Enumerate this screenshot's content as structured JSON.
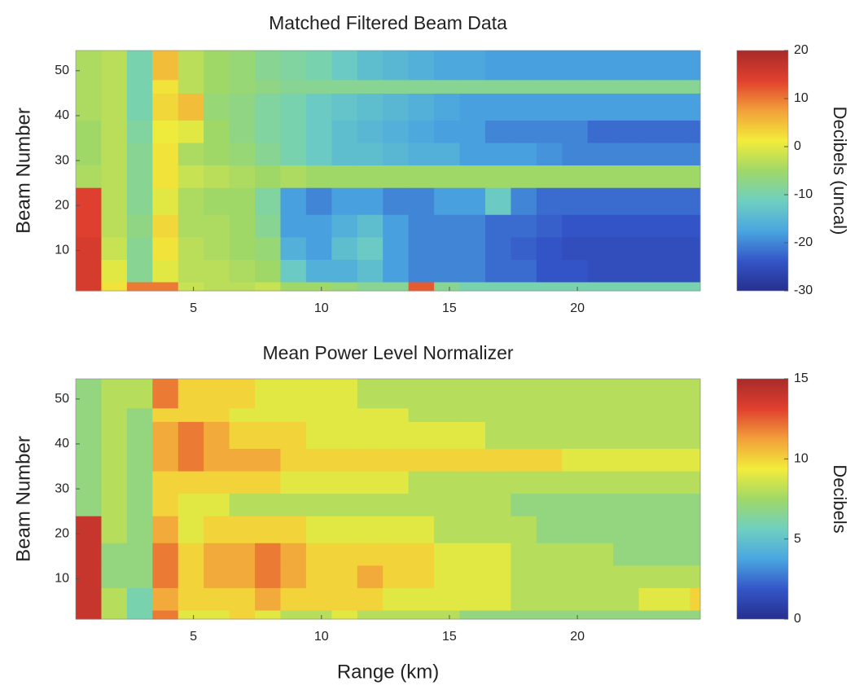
{
  "chart_data": [
    {
      "type": "heatmap",
      "title": "Matched Filtered Beam Data",
      "ylabel": "Beam Number",
      "colorbar_label": "Decibels (uncal)",
      "x_edges": [
        0.4,
        1.4,
        2.4,
        3.4,
        4.4,
        5.4,
        6.4,
        7.4,
        8.4,
        9.4,
        10.4,
        11.4,
        12.4,
        13.4,
        14.4,
        15.4,
        16.4,
        17.4,
        18.4,
        19.4,
        20.4,
        21.4,
        22.4,
        23.4,
        24.4,
        24.8
      ],
      "y_edges": [
        1,
        3,
        8,
        13,
        18,
        24,
        29,
        34,
        39,
        45,
        48,
        54.5
      ],
      "xlim": [
        0.4,
        24.8
      ],
      "ylim": [
        1,
        54.5
      ],
      "xticks": [
        5,
        10,
        15,
        20
      ],
      "yticks": [
        10,
        20,
        30,
        40,
        50
      ],
      "clim": [
        -30,
        20
      ],
      "cticks": [
        -30,
        -20,
        -10,
        0,
        10,
        20
      ],
      "colormap": [
        "#262f8e",
        "#3456c8",
        "#4aa6e0",
        "#6fd0c0",
        "#a0d868",
        "#f2ec3a",
        "#f2a03a",
        "#e0402e",
        "#a82a2a"
      ],
      "values": [
        [
          15,
          2,
          10,
          10,
          -2,
          -3,
          -3,
          -2,
          -5,
          -5,
          -6,
          -8,
          -8,
          12,
          -8,
          -10,
          -10,
          -10,
          -10,
          -10,
          -10,
          -10,
          -10,
          -10,
          -10
        ],
        [
          15,
          0,
          -8,
          0,
          -3,
          -3,
          -4,
          -5,
          -12,
          -16,
          -16,
          -14,
          -18,
          -20,
          -20,
          -20,
          -22,
          -22,
          -24,
          -24,
          -25,
          -25,
          -25,
          -25,
          -25
        ],
        [
          15,
          -2,
          -8,
          2,
          -3,
          -4,
          -5,
          -6,
          -16,
          -18,
          -14,
          -12,
          -18,
          -20,
          -20,
          -20,
          -22,
          -23,
          -24,
          -25,
          -25,
          -25,
          -25,
          -25,
          -25
        ],
        [
          14,
          -3,
          -7,
          3,
          -4,
          -4,
          -5,
          -8,
          -18,
          -18,
          -16,
          -14,
          -18,
          -20,
          -20,
          -20,
          -22,
          -22,
          -23,
          -24,
          -24,
          -24,
          -24,
          -24,
          -24
        ],
        [
          14,
          -3,
          -8,
          0,
          -4,
          -5,
          -5,
          -9,
          -18,
          -20,
          -18,
          -18,
          -20,
          -20,
          -18,
          -18,
          -12,
          -20,
          -22,
          -22,
          -22,
          -22,
          -22,
          -22,
          -22
        ],
        [
          -4,
          -3,
          -8,
          2,
          -2,
          -3,
          -4,
          -5,
          -4,
          -5,
          -5,
          -5,
          -5,
          -5,
          -5,
          -5,
          -5,
          -5,
          -5,
          -5,
          -5,
          -5,
          -5,
          -5,
          -5
        ],
        [
          -5,
          -3,
          -8,
          2,
          -4,
          -5,
          -6,
          -8,
          -10,
          -12,
          -14,
          -14,
          -15,
          -16,
          -16,
          -18,
          -18,
          -18,
          -19,
          -20,
          -20,
          -20,
          -20,
          -20,
          -20
        ],
        [
          -5,
          -3,
          -9,
          1,
          0,
          -5,
          -7,
          -9,
          -10,
          -12,
          -14,
          -15,
          -16,
          -17,
          -18,
          -18,
          -20,
          -20,
          -20,
          -20,
          -22,
          -22,
          -22,
          -22,
          -22
        ],
        [
          -4,
          -3,
          -10,
          3,
          5,
          -6,
          -7,
          -9,
          -10,
          -12,
          -13,
          -14,
          -15,
          -16,
          -17,
          -18,
          -18,
          -18,
          -18,
          -18,
          -18,
          -18,
          -18,
          -18,
          -18
        ],
        [
          -4,
          -3,
          -10,
          2,
          -3,
          -5,
          -6,
          -7,
          -8,
          -8,
          -8,
          -8,
          -8,
          -8,
          -8,
          -8,
          -8,
          -8,
          -8,
          -8,
          -8,
          -8,
          -8,
          -8,
          -8
        ],
        [
          -4,
          -3,
          -10,
          5,
          -3,
          -5,
          -6,
          -8,
          -9,
          -10,
          -12,
          -14,
          -15,
          -16,
          -17,
          -17,
          -18,
          -18,
          -18,
          -18,
          -18,
          -18,
          -18,
          -18,
          -18
        ]
      ]
    },
    {
      "type": "heatmap",
      "title": "Mean Power Level Normalizer",
      "ylabel": "Beam Number",
      "xlabel": "Range (km)",
      "colorbar_label": "Decibels",
      "x_edges": [
        0.4,
        1.4,
        2.4,
        3.4,
        4.4,
        5.4,
        6.4,
        7.4,
        8.4,
        9.4,
        10.4,
        11.4,
        12.4,
        13.4,
        14.4,
        15.4,
        16.4,
        17.4,
        18.4,
        19.4,
        20.4,
        21.4,
        22.4,
        23.4,
        24.4,
        24.8
      ],
      "y_edges": [
        1,
        3,
        8,
        13,
        18,
        24,
        29,
        34,
        39,
        45,
        48,
        54.5
      ],
      "xlim": [
        0.4,
        24.8
      ],
      "ylim": [
        1,
        54.5
      ],
      "xticks": [
        5,
        10,
        15,
        20
      ],
      "yticks": [
        10,
        20,
        30,
        40,
        50
      ],
      "clim": [
        0,
        15
      ],
      "cticks": [
        0,
        5,
        10,
        15
      ],
      "colormap": [
        "#262f8e",
        "#3456c8",
        "#4aa6e0",
        "#6fd0c0",
        "#a0d868",
        "#f2ec3a",
        "#f2a03a",
        "#e0402e",
        "#a82a2a"
      ],
      "values": [
        [
          14,
          8,
          6,
          12,
          9,
          9,
          10,
          9,
          8,
          8,
          9,
          8,
          8,
          8,
          8,
          7,
          7,
          7,
          7,
          7,
          7,
          7,
          7,
          7,
          7
        ],
        [
          14,
          8,
          6,
          11,
          10,
          10,
          10,
          11,
          10,
          10,
          10,
          10,
          9,
          9,
          9,
          9,
          9,
          8,
          8,
          8,
          8,
          8,
          9,
          9,
          10
        ],
        [
          14,
          7,
          7,
          12,
          10,
          11,
          11,
          12,
          11,
          10,
          10,
          11,
          10,
          10,
          9,
          9,
          9,
          8,
          8,
          8,
          8,
          8,
          8,
          8,
          8
        ],
        [
          14,
          7,
          7,
          12,
          10,
          11,
          11,
          12,
          11,
          10,
          10,
          10,
          10,
          10,
          9,
          9,
          9,
          8,
          8,
          8,
          8,
          7,
          7,
          7,
          7
        ],
        [
          14,
          8,
          7,
          11,
          9,
          10,
          10,
          10,
          10,
          9,
          9,
          9,
          9,
          9,
          8,
          8,
          8,
          8,
          7,
          7,
          7,
          7,
          7,
          7,
          7
        ],
        [
          7,
          8,
          7,
          10,
          9,
          9,
          8,
          8,
          8,
          8,
          8,
          8,
          8,
          8,
          8,
          8,
          8,
          7,
          7,
          7,
          7,
          7,
          7,
          7,
          7
        ],
        [
          7,
          8,
          7,
          10,
          10,
          10,
          10,
          10,
          9,
          9,
          9,
          9,
          9,
          8,
          8,
          8,
          8,
          8,
          8,
          8,
          8,
          8,
          8,
          8,
          8
        ],
        [
          7,
          8,
          7,
          11,
          12,
          11,
          11,
          11,
          10,
          10,
          10,
          10,
          10,
          10,
          10,
          10,
          10,
          10,
          10,
          9,
          9,
          9,
          9,
          9,
          9
        ],
        [
          7,
          8,
          7,
          11,
          12,
          11,
          10,
          10,
          10,
          9,
          9,
          9,
          9,
          9,
          9,
          9,
          8,
          8,
          8,
          8,
          8,
          8,
          8,
          8,
          8
        ],
        [
          7,
          8,
          7,
          10,
          10,
          10,
          9,
          9,
          9,
          9,
          9,
          9,
          9,
          8,
          8,
          8,
          8,
          8,
          8,
          8,
          8,
          8,
          8,
          8,
          8
        ],
        [
          7,
          8,
          8,
          12,
          10,
          10,
          10,
          9,
          9,
          9,
          9,
          8,
          8,
          8,
          8,
          8,
          8,
          8,
          8,
          8,
          8,
          8,
          8,
          8,
          8
        ]
      ]
    }
  ]
}
